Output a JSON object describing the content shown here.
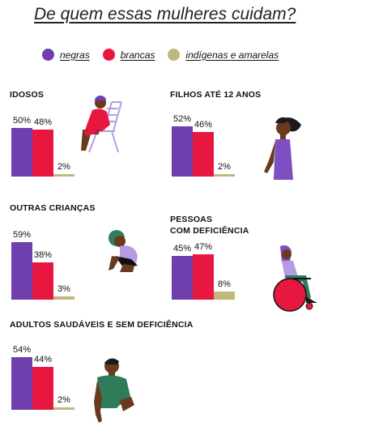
{
  "title": "De quem essas mulheres cuidam?",
  "legend": [
    {
      "label": "negras",
      "color": "#6f3fae"
    },
    {
      "label": "brancas",
      "color": "#e8173f"
    },
    {
      "label": "indígenas e amarelas",
      "color": "#c2b77a"
    }
  ],
  "chart_data": [
    {
      "type": "bar",
      "title": "IDOSOS",
      "categories": [
        "negras",
        "brancas",
        "indígenas e amarelas"
      ],
      "values": [
        50,
        48,
        2
      ],
      "labels": [
        "50%",
        "48%",
        "2%"
      ]
    },
    {
      "type": "bar",
      "title": "FILHOS ATÉ 12 ANOS",
      "categories": [
        "negras",
        "brancas",
        "indígenas e amarelas"
      ],
      "values": [
        52,
        46,
        2
      ],
      "labels": [
        "52%",
        "46%",
        "2%"
      ]
    },
    {
      "type": "bar",
      "title": "OUTRAS CRIANÇAS",
      "categories": [
        "negras",
        "brancas",
        "indígenas e amarelas"
      ],
      "values": [
        59,
        38,
        3
      ],
      "labels": [
        "59%",
        "38%",
        "3%"
      ]
    },
    {
      "type": "bar",
      "title": "PESSOAS\nCOM DEFICIÊNCIA",
      "categories": [
        "negras",
        "brancas",
        "indígenas e amarelas"
      ],
      "values": [
        45,
        47,
        8
      ],
      "labels": [
        "45%",
        "47%",
        "8%"
      ]
    },
    {
      "type": "bar",
      "title": "ADULTOS SAUDÁVEIS E SEM DEFICIÊNCIA",
      "categories": [
        "negras",
        "brancas",
        "indígenas e amarelas"
      ],
      "values": [
        54,
        44,
        2
      ],
      "labels": [
        "54%",
        "44%",
        "2%"
      ]
    }
  ]
}
